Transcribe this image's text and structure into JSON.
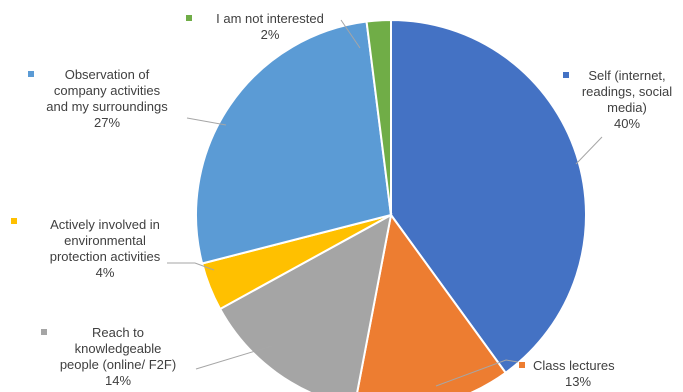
{
  "chart_data": {
    "type": "pie",
    "title": "",
    "series": [
      {
        "categories": [
          "Self (internet, readings, social media)",
          "Class lectures",
          "Reach to knowledgeable people (online/ F2F)",
          "Actively involved in environmental protection activities",
          "Observation of company activities and my surroundings",
          "I am not interested"
        ],
        "values": [
          40,
          13,
          14,
          4,
          27,
          2
        ],
        "value_labels": [
          "40%",
          "13%",
          "14%",
          "4%",
          "27%",
          "2%"
        ],
        "colors": [
          "#4472c4",
          "#ed7d31",
          "#a5a5a5",
          "#ffc000",
          "#5b9bd5",
          "#70ad47"
        ]
      }
    ],
    "label_lines": [
      [
        "Self (internet,",
        "readings, social",
        "media)"
      ],
      [
        "Class lectures"
      ],
      [
        "Reach to",
        "knowledgeable",
        "people (online/ F2F)"
      ],
      [
        "Actively involved in",
        "environmental",
        "protection activities"
      ],
      [
        "Observation of",
        "company activities",
        "and my surroundings"
      ],
      [
        "I am not interested"
      ]
    ],
    "legend": "none",
    "start_angle": "12 o'clock, clockwise"
  }
}
